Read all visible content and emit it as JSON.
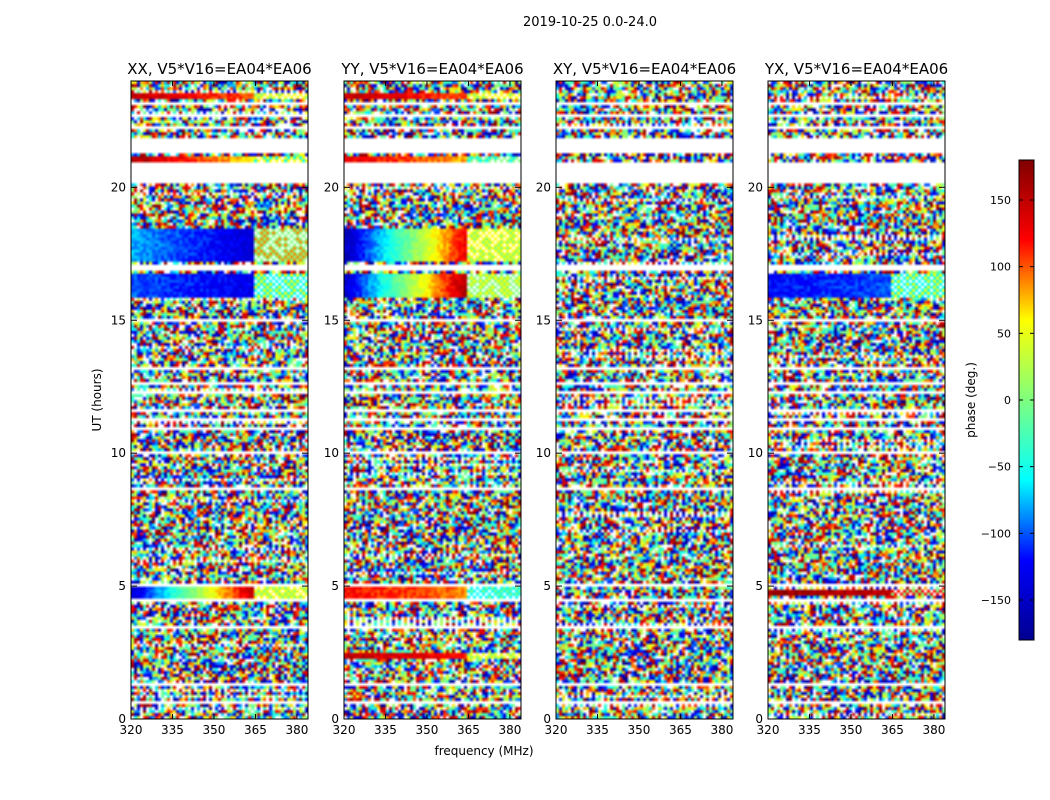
{
  "suptitle": "2019-10-25 0.0-24.0",
  "chart_data": {
    "type": "heatmap",
    "suptitle": "2019-10-25 0.0-24.0",
    "xlabel": "frequency (MHz)",
    "ylabel": "UT (hours)",
    "xlim": [
      320,
      384
    ],
    "ylim": [
      0,
      24
    ],
    "xticks": [
      320,
      335,
      350,
      365,
      380
    ],
    "yticks": [
      0,
      5,
      10,
      15,
      20
    ],
    "colorbar": {
      "label": "phase (deg.)",
      "range": [
        -180,
        180
      ],
      "ticks": [
        -150,
        -100,
        -50,
        0,
        50,
        100,
        150
      ],
      "colormap": "jet",
      "stops": [
        "#00008f",
        "#0000ff",
        "#00ffff",
        "#7fff7f",
        "#ffff00",
        "#ff0000",
        "#800000"
      ]
    },
    "panels": [
      {
        "title": "XX, V5*V16=EA04*EA06",
        "structured_bands": [
          {
            "t": [
              4.55,
              4.95
            ],
            "phase_deg": [
              -150,
              150
            ],
            "split_mhz": 364,
            "tail": [
              "#ffff00",
              "#7fff7f"
            ]
          },
          {
            "t": [
              15.8,
              16.8
            ],
            "phase_deg": [
              -100,
              -130
            ],
            "split_mhz": 364,
            "tail": [
              "#00ffff",
              "#ffff00"
            ]
          },
          {
            "t": [
              17.2,
              18.4
            ],
            "phase_deg": [
              -80,
              -140
            ],
            "split_mhz": 364,
            "tail": [
              "#7fff7f",
              "#ff8000"
            ]
          },
          {
            "t": [
              20.9,
              21.2
            ],
            "phase_deg": [
              160,
              60
            ],
            "split_mhz": 364,
            "tail": [
              "#ffff00",
              "#00ffff"
            ]
          },
          {
            "t": [
              23.3,
              23.6
            ],
            "phase_deg": [
              150,
              100
            ],
            "split_mhz": 364,
            "tail": [
              "#ffff00",
              "#7fff7f"
            ]
          }
        ]
      },
      {
        "title": "YY, V5*V16=EA04*EA06",
        "structured_bands": [
          {
            "t": [
              4.55,
              4.95
            ],
            "phase_deg": [
              120,
              90
            ],
            "split_mhz": 364,
            "tail": [
              "#00ffff",
              "#7fff7f"
            ]
          },
          {
            "t": [
              2.3,
              2.5
            ],
            "phase_deg": [
              150,
              120
            ],
            "split_mhz": 364,
            "tail": [
              "#ffff00",
              "#7fff7f"
            ]
          },
          {
            "t": [
              15.8,
              16.8
            ],
            "phase_deg": [
              -150,
              160
            ],
            "split_mhz": 364,
            "tail": [
              "#7fff7f",
              "#ffff00"
            ]
          },
          {
            "t": [
              17.2,
              18.4
            ],
            "phase_deg": [
              -160,
              130
            ],
            "split_mhz": 364,
            "tail": [
              "#ffff00",
              "#7fff7f"
            ]
          },
          {
            "t": [
              20.9,
              21.2
            ],
            "phase_deg": [
              130,
              80
            ],
            "split_mhz": 364,
            "tail": [
              "#7fff7f",
              "#00ffff"
            ]
          },
          {
            "t": [
              23.3,
              23.6
            ],
            "phase_deg": [
              150,
              100
            ],
            "split_mhz": 364,
            "tail": [
              "#ffff00",
              "#7fff7f"
            ]
          }
        ]
      },
      {
        "title": "XY, V5*V16=EA04*EA06",
        "structured_bands": []
      },
      {
        "title": "YX, V5*V16=EA04*EA06",
        "structured_bands": [
          {
            "t": [
              4.6,
              4.9
            ],
            "phase_deg": [
              170,
              150
            ],
            "split_mhz": 364,
            "tail": [
              "#ff0000",
              "#7fff7f"
            ]
          },
          {
            "t": [
              15.8,
              16.8
            ],
            "phase_deg": [
              -120,
              -100
            ],
            "split_mhz": 364,
            "tail": [
              "#00ffff",
              "#ffff00"
            ]
          }
        ]
      }
    ],
    "flagged_hours": [
      [
        0.3,
        0.38
      ],
      [
        0.6,
        0.68
      ],
      [
        1.3,
        1.38
      ],
      [
        1.55,
        1.63
      ],
      [
        2.1,
        2.2
      ],
      [
        3.35,
        3.55
      ],
      [
        4.4,
        4.48
      ],
      [
        4.97,
        5.05
      ],
      [
        8.65,
        8.7
      ],
      [
        9.35,
        9.45
      ],
      [
        10.0,
        10.1
      ],
      [
        10.85,
        10.95
      ],
      [
        11.2,
        11.3
      ],
      [
        11.55,
        11.65
      ],
      [
        12.2,
        12.3
      ],
      [
        12.6,
        12.7
      ],
      [
        13.1,
        13.25
      ],
      [
        15.0,
        15.1
      ],
      [
        16.85,
        17.15
      ],
      [
        18.55,
        18.6
      ],
      [
        20.1,
        20.9
      ],
      [
        21.25,
        21.9
      ],
      [
        22.2,
        22.3
      ],
      [
        22.6,
        22.7
      ],
      [
        23.05,
        23.25
      ]
    ]
  }
}
